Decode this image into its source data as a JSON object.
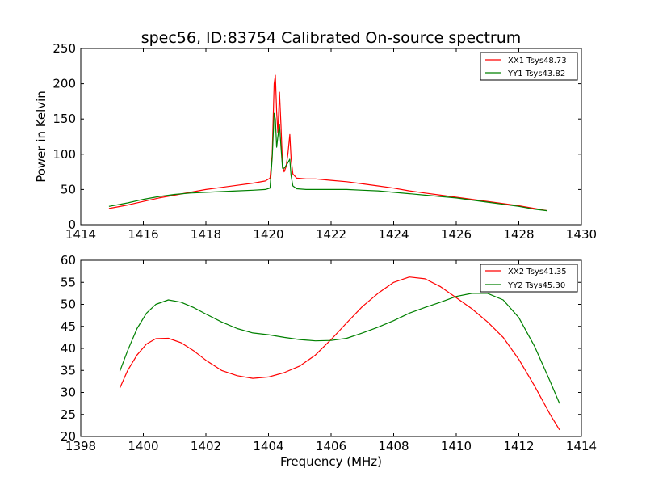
{
  "chart_data": [
    {
      "type": "line",
      "title": "spec56, ID:83754 Calibrated On-source spectrum",
      "xlabel": "",
      "ylabel": "Power in Kelvin",
      "xlim": [
        1414,
        1430
      ],
      "ylim": [
        0,
        250
      ],
      "xticks": [
        "1414",
        "1416",
        "1418",
        "1420",
        "1422",
        "1424",
        "1426",
        "1428",
        "1430"
      ],
      "yticks": [
        "0",
        "50",
        "100",
        "150",
        "200",
        "250"
      ],
      "legend_position": "top-right",
      "series": [
        {
          "name": "XX1 Tsys48.73",
          "color": "#ff0000",
          "x": [
            1414.9,
            1415.5,
            1416.0,
            1416.5,
            1417.0,
            1417.5,
            1418.0,
            1418.5,
            1419.0,
            1419.5,
            1419.9,
            1420.05,
            1420.12,
            1420.18,
            1420.22,
            1420.26,
            1420.3,
            1420.35,
            1420.4,
            1420.45,
            1420.5,
            1420.56,
            1420.62,
            1420.68,
            1420.72,
            1420.78,
            1420.9,
            1421.2,
            1421.5,
            1422.0,
            1422.5,
            1423.0,
            1423.5,
            1424.0,
            1424.5,
            1425.0,
            1425.5,
            1426.0,
            1426.5,
            1427.0,
            1427.5,
            1428.0,
            1428.5,
            1428.9
          ],
          "y": [
            23,
            28,
            33,
            38,
            42,
            46,
            50,
            53,
            56,
            59,
            62,
            66,
            100,
            200,
            212,
            160,
            130,
            188,
            140,
            85,
            75,
            82,
            100,
            128,
            95,
            72,
            66,
            65,
            65,
            63,
            61,
            58,
            55,
            52,
            48,
            45,
            42,
            39,
            36,
            33,
            30,
            27,
            23,
            20
          ]
        },
        {
          "name": "YY1 Tsys43.82",
          "color": "#008000",
          "x": [
            1414.9,
            1415.5,
            1416.0,
            1416.5,
            1417.0,
            1417.5,
            1418.0,
            1418.5,
            1419.0,
            1419.5,
            1419.9,
            1420.05,
            1420.12,
            1420.18,
            1420.22,
            1420.26,
            1420.3,
            1420.35,
            1420.4,
            1420.45,
            1420.5,
            1420.56,
            1420.62,
            1420.68,
            1420.72,
            1420.78,
            1420.9,
            1421.2,
            1421.5,
            1422.0,
            1422.5,
            1423.0,
            1423.5,
            1424.0,
            1424.5,
            1425.0,
            1425.5,
            1426.0,
            1426.5,
            1427.0,
            1427.5,
            1428.0,
            1428.5,
            1428.9
          ],
          "y": [
            26,
            31,
            36,
            40,
            43,
            45,
            46,
            47,
            48,
            49,
            50,
            52,
            95,
            158,
            150,
            110,
            125,
            142,
            110,
            80,
            80,
            84,
            88,
            93,
            70,
            55,
            51,
            50,
            50,
            50,
            50,
            49,
            48,
            46,
            44,
            42,
            40,
            38,
            35,
            32,
            29,
            26,
            22,
            20
          ]
        }
      ]
    },
    {
      "type": "line",
      "title": "",
      "xlabel": "Frequency (MHz)",
      "ylabel": "",
      "xlim": [
        1398,
        1414
      ],
      "ylim": [
        20,
        60
      ],
      "xticks": [
        "1398",
        "1400",
        "1402",
        "1404",
        "1406",
        "1408",
        "1410",
        "1412",
        "1414"
      ],
      "yticks": [
        "20",
        "25",
        "30",
        "35",
        "40",
        "45",
        "50",
        "55",
        "60"
      ],
      "legend_position": "top-right",
      "series": [
        {
          "name": "XX2 Tsys41.35",
          "color": "#ff0000",
          "x": [
            1399.25,
            1399.5,
            1399.8,
            1400.1,
            1400.4,
            1400.8,
            1401.2,
            1401.6,
            1402.0,
            1402.5,
            1403.0,
            1403.5,
            1404.0,
            1404.5,
            1405.0,
            1405.5,
            1406.0,
            1406.5,
            1407.0,
            1407.5,
            1408.0,
            1408.5,
            1409.0,
            1409.5,
            1410.0,
            1410.5,
            1411.0,
            1411.5,
            1412.0,
            1412.5,
            1413.0,
            1413.3
          ],
          "y": [
            31,
            35,
            38.5,
            41,
            42.2,
            42.3,
            41.3,
            39.5,
            37.3,
            35,
            33.8,
            33.2,
            33.5,
            34.5,
            36,
            38.5,
            42,
            45.8,
            49.5,
            52.5,
            55,
            56.2,
            55.8,
            54,
            51.5,
            49,
            46,
            42.5,
            37.5,
            31.5,
            25,
            21.5
          ]
        },
        {
          "name": "YY2 Tsys45.30",
          "color": "#008000",
          "x": [
            1399.25,
            1399.5,
            1399.8,
            1400.1,
            1400.4,
            1400.8,
            1401.2,
            1401.6,
            1402.0,
            1402.5,
            1403.0,
            1403.5,
            1404.0,
            1404.5,
            1405.0,
            1405.5,
            1406.0,
            1406.5,
            1407.0,
            1407.5,
            1408.0,
            1408.5,
            1409.0,
            1409.5,
            1410.0,
            1410.5,
            1411.0,
            1411.5,
            1412.0,
            1412.5,
            1413.0,
            1413.3
          ],
          "y": [
            34.8,
            39.5,
            44.5,
            48,
            50,
            51,
            50.5,
            49.3,
            47.8,
            46,
            44.5,
            43.5,
            43.1,
            42.5,
            42,
            41.7,
            41.8,
            42.3,
            43.5,
            44.8,
            46.3,
            48,
            49.3,
            50.5,
            51.8,
            52.5,
            52.5,
            51,
            47,
            40.5,
            32.5,
            27.5
          ]
        }
      ]
    }
  ]
}
